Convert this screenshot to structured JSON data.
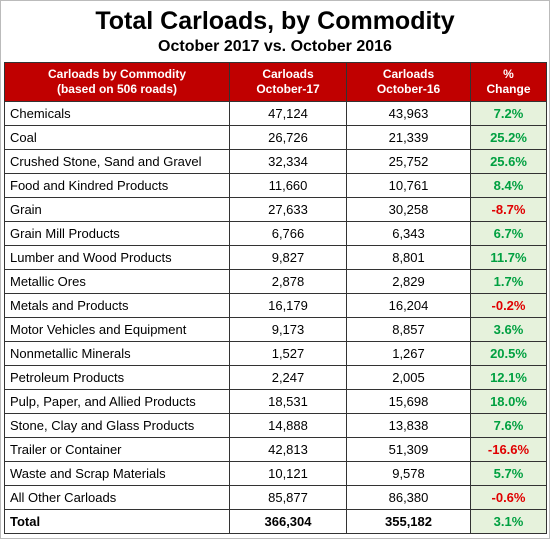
{
  "header": {
    "title": "Total Carloads, by Commodity",
    "subtitle": "October 2017 vs. October 2016"
  },
  "table": {
    "columns": [
      [
        "Carloads by Commodity",
        "(based on 506 roads)"
      ],
      [
        "Carloads",
        "October-17"
      ],
      [
        "Carloads",
        "October-16"
      ],
      [
        "%",
        "Change"
      ]
    ],
    "rows": [
      [
        "Chemicals",
        "47,124",
        "43,963",
        "7.2%"
      ],
      [
        "Coal",
        "26,726",
        "21,339",
        "25.2%"
      ],
      [
        "Crushed Stone, Sand and Gravel",
        "32,334",
        "25,752",
        "25.6%"
      ],
      [
        "Food and Kindred Products",
        "11,660",
        "10,761",
        "8.4%"
      ],
      [
        "Grain",
        "27,633",
        "30,258",
        "-8.7%"
      ],
      [
        "Grain Mill Products",
        "6,766",
        "6,343",
        "6.7%"
      ],
      [
        "Lumber and Wood Products",
        "9,827",
        "8,801",
        "11.7%"
      ],
      [
        "Metallic Ores",
        "2,878",
        "2,829",
        "1.7%"
      ],
      [
        "Metals and Products",
        "16,179",
        "16,204",
        "-0.2%"
      ],
      [
        "Motor Vehicles and Equipment",
        "9,173",
        "8,857",
        "3.6%"
      ],
      [
        "Nonmetallic Minerals",
        "1,527",
        "1,267",
        "20.5%"
      ],
      [
        "Petroleum Products",
        "2,247",
        "2,005",
        "12.1%"
      ],
      [
        "Pulp, Paper, and Allied Products",
        "18,531",
        "15,698",
        "18.0%"
      ],
      [
        "Stone, Clay and Glass Products",
        "14,888",
        "13,838",
        "7.6%"
      ],
      [
        "Trailer or Container",
        "42,813",
        "51,309",
        "-16.6%"
      ],
      [
        "Waste and Scrap Materials",
        "10,121",
        "9,578",
        "5.7%"
      ],
      [
        "All Other Carloads",
        "85,877",
        "86,380",
        "-0.6%"
      ]
    ],
    "total": [
      "Total",
      "366,304",
      "355,182",
      "3.1%"
    ]
  }
}
